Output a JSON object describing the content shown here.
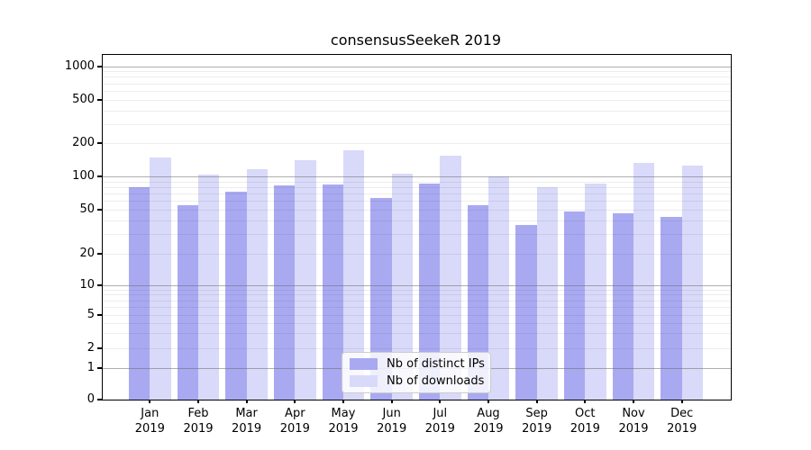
{
  "chart_data": {
    "type": "bar",
    "title": "consensusSeekeR 2019",
    "categories": [
      "Jan",
      "Feb",
      "Mar",
      "Apr",
      "May",
      "Jun",
      "Jul",
      "Aug",
      "Sep",
      "Oct",
      "Nov",
      "Dec"
    ],
    "year": "2019",
    "series": [
      {
        "name": "Nb of distinct IPs",
        "color": "#a9a9f2",
        "values": [
          80,
          55,
          73,
          83,
          84,
          64,
          86,
          55,
          36,
          48,
          46,
          43
        ]
      },
      {
        "name": "Nb of downloads",
        "color": "#d9d9f9",
        "values": [
          149,
          104,
          117,
          141,
          173,
          105,
          154,
          100,
          80,
          86,
          133,
          126
        ]
      }
    ],
    "y_ticks": [
      0,
      1,
      2,
      5,
      10,
      20,
      50,
      100,
      200,
      500,
      1000
    ],
    "yscale": "log-like with compressed region below 10 and linear 0-1 segment",
    "ylim": [
      0,
      1290
    ],
    "xlabel": "",
    "ylabel": "",
    "grid": "horizontal major lines at 1,10,100,1000; faint lines at other ticks and log minors",
    "legend_position": "lower center"
  },
  "colors": {
    "background": "#ffffff",
    "spine": "#000000",
    "grid_major": "#6e6e6e",
    "grid_minor": "#ebebeb",
    "bar_distinct_ips": "#a9a9f2",
    "bar_downloads": "#d9d9f9",
    "legend_border": "#cccccc"
  }
}
